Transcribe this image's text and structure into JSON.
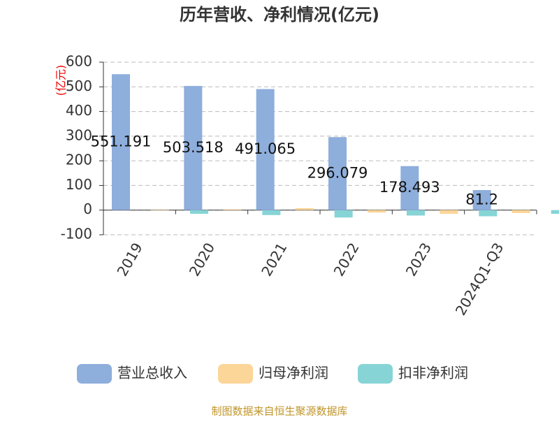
{
  "chart_data": {
    "type": "bar",
    "title": "历年营收、净利情况(亿元)",
    "y_label": "(亿元)",
    "categories": [
      "2019",
      "2020",
      "2021",
      "2022",
      "2023",
      "2024Q1-Q3"
    ],
    "series": [
      {
        "name": "营业总收入",
        "color": "#8eaedc",
        "values": [
          551.191,
          503.518,
          491.065,
          296.079,
          178.493,
          81.2
        ]
      },
      {
        "name": "归母净利润",
        "color": "#fcd598",
        "values": [
          -2,
          3,
          8,
          -10,
          -15,
          -12
        ]
      },
      {
        "name": "扣非净利润",
        "color": "#86d4d6",
        "values": [
          -15,
          -20,
          -30,
          -22,
          -25,
          -15
        ]
      }
    ],
    "ylim": [
      -100,
      600
    ],
    "yticks": [
      -100,
      0,
      100,
      200,
      300,
      400,
      500,
      600
    ],
    "grid": true,
    "source": "制图数据来自恒生聚源数据库"
  }
}
